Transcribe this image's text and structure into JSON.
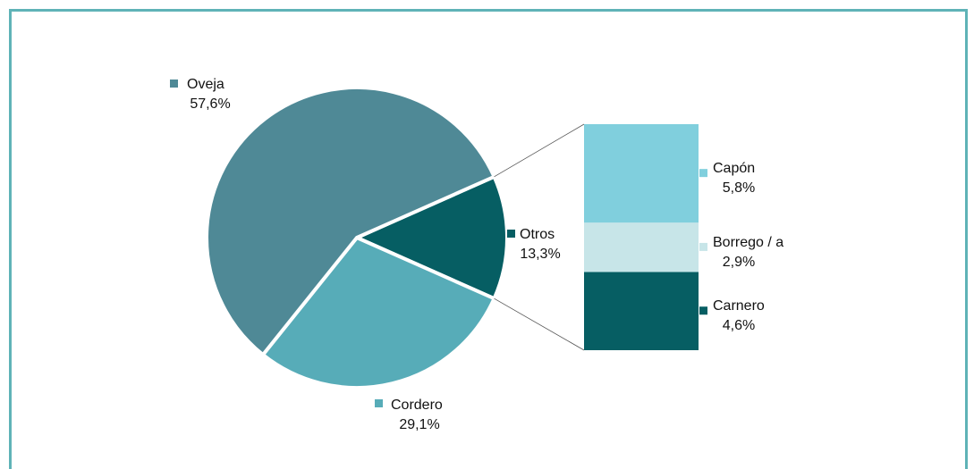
{
  "chart_data": {
    "type": "pie",
    "title": "",
    "series": [
      {
        "label": "Oveja",
        "value_text": "57,6%",
        "value": 57.6,
        "color": "#4f8996"
      },
      {
        "label": "Cordero",
        "value_text": "29,1%",
        "value": 29.1,
        "color": "#57acb8"
      },
      {
        "label": "Otros",
        "value_text": "13,3%",
        "value": 13.3,
        "color": "#065e63"
      }
    ],
    "breakdown_of": "Otros",
    "breakdown": [
      {
        "label": "Capón",
        "value_text": "5,8%",
        "value": 5.8,
        "color": "#80cfdd"
      },
      {
        "label": "Borrego / a",
        "value_text": "2,9%",
        "value": 2.9,
        "color": "#c7e5e8"
      },
      {
        "label": "Carnero",
        "value_text": "4,6%",
        "value": 4.6,
        "color": "#065e63"
      }
    ],
    "legend": "labels next to slices and bars"
  }
}
